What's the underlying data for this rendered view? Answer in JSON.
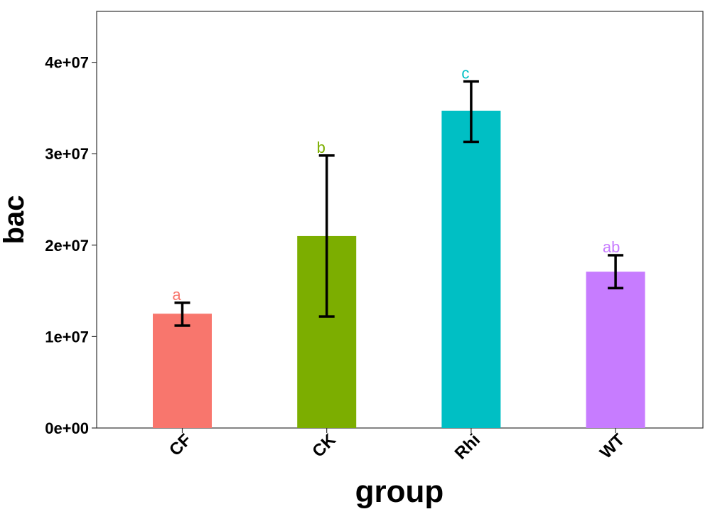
{
  "chart_data": {
    "type": "bar",
    "title": "",
    "xlabel": "group",
    "ylabel": "bac",
    "categories": [
      "CF",
      "CK",
      "Rhi",
      "WT"
    ],
    "values": [
      12500000,
      21000000,
      34700000,
      17100000
    ],
    "error_low": [
      11200000,
      12200000,
      31300000,
      15300000
    ],
    "error_high": [
      13700000,
      29800000,
      37900000,
      18900000
    ],
    "significance_labels": [
      "a",
      "b",
      "c",
      "ab"
    ],
    "colors": [
      "#F8766D",
      "#7CAE00",
      "#00BFC4",
      "#C77CFF"
    ],
    "ylim": [
      0,
      45000000
    ],
    "yticks": [
      0,
      10000000,
      20000000,
      30000000,
      40000000
    ],
    "ytick_labels": [
      "0e+00",
      "1e+07",
      "2e+07",
      "3e+07",
      "4e+07"
    ],
    "grid": false,
    "legend": "none"
  }
}
